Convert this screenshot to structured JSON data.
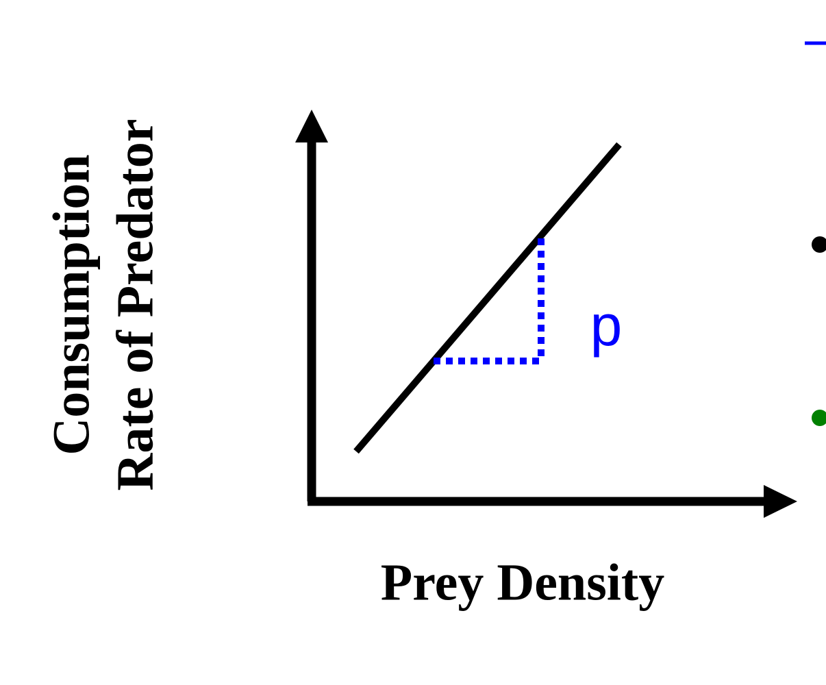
{
  "y_axis_label": [
    "Consumption",
    "Rate of Predator"
  ],
  "x_axis_label": "Prey Density",
  "slope_label": "p"
}
